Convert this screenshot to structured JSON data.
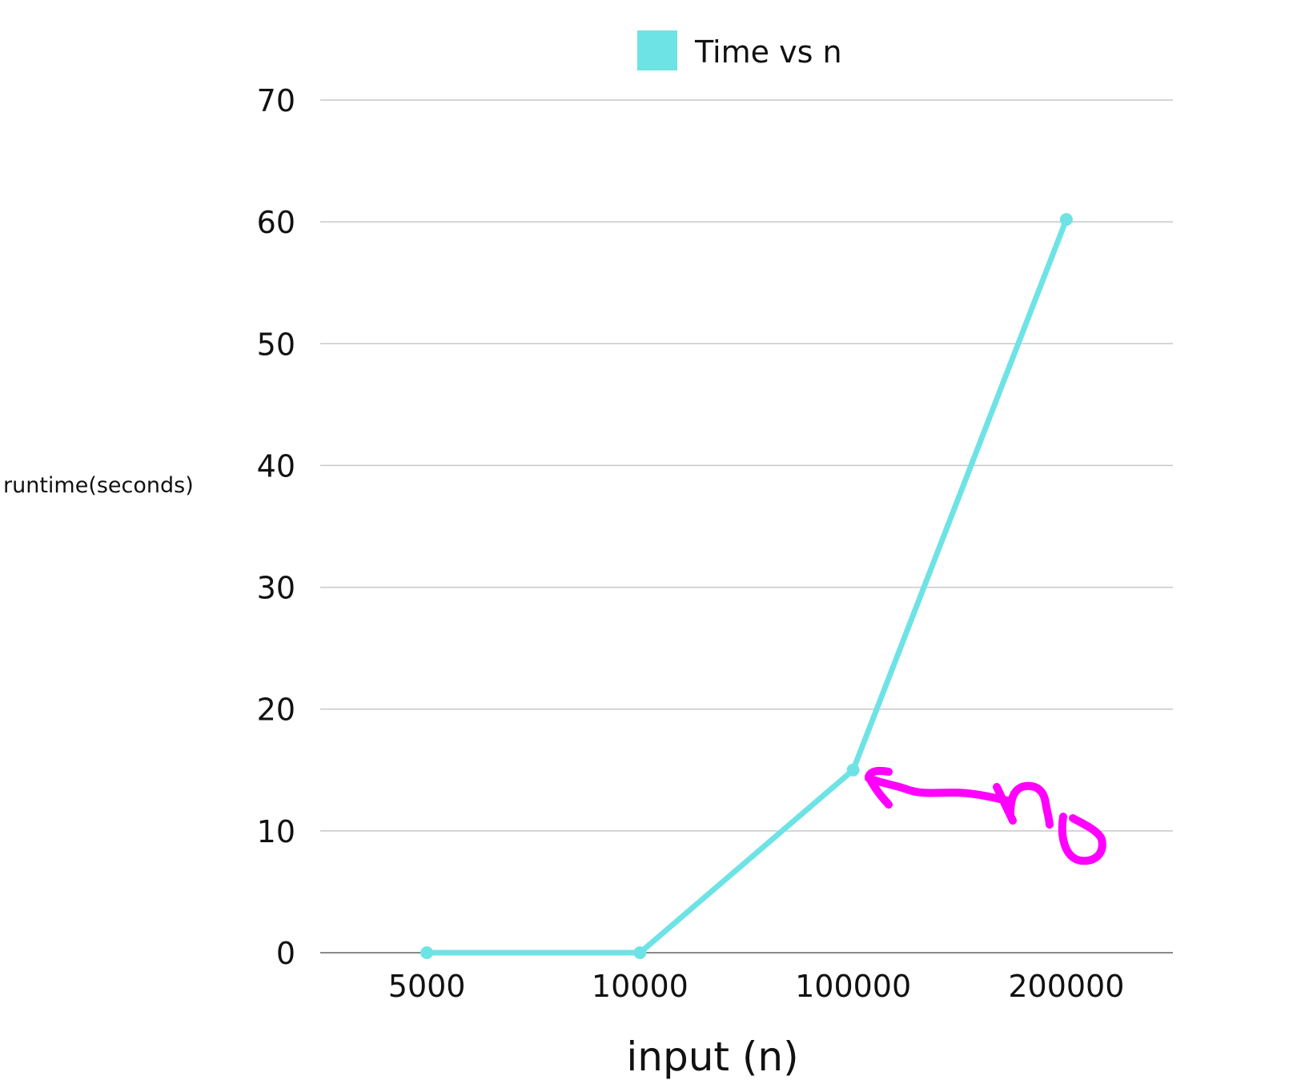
{
  "chart_data": {
    "type": "line",
    "categories": [
      "5000",
      "10000",
      "100000",
      "200000"
    ],
    "series": [
      {
        "name": "Time vs n",
        "values": [
          0,
          0,
          15,
          60.2
        ]
      }
    ],
    "title": "",
    "xlabel": "input (n)",
    "ylabel": "runtime(seconds)",
    "ylim": [
      0,
      70
    ],
    "yticks": [
      0,
      10,
      20,
      30,
      40,
      50,
      60,
      70
    ],
    "grid": true,
    "legend": "top-center",
    "series_color": "#6ee3e5",
    "grid_color": "#c8c8c8",
    "axis_color": "#8a8a8a",
    "annotation": {
      "text": "no",
      "style": "handwritten arrow pointing at 100000 point",
      "color": "#ff00ff"
    }
  }
}
